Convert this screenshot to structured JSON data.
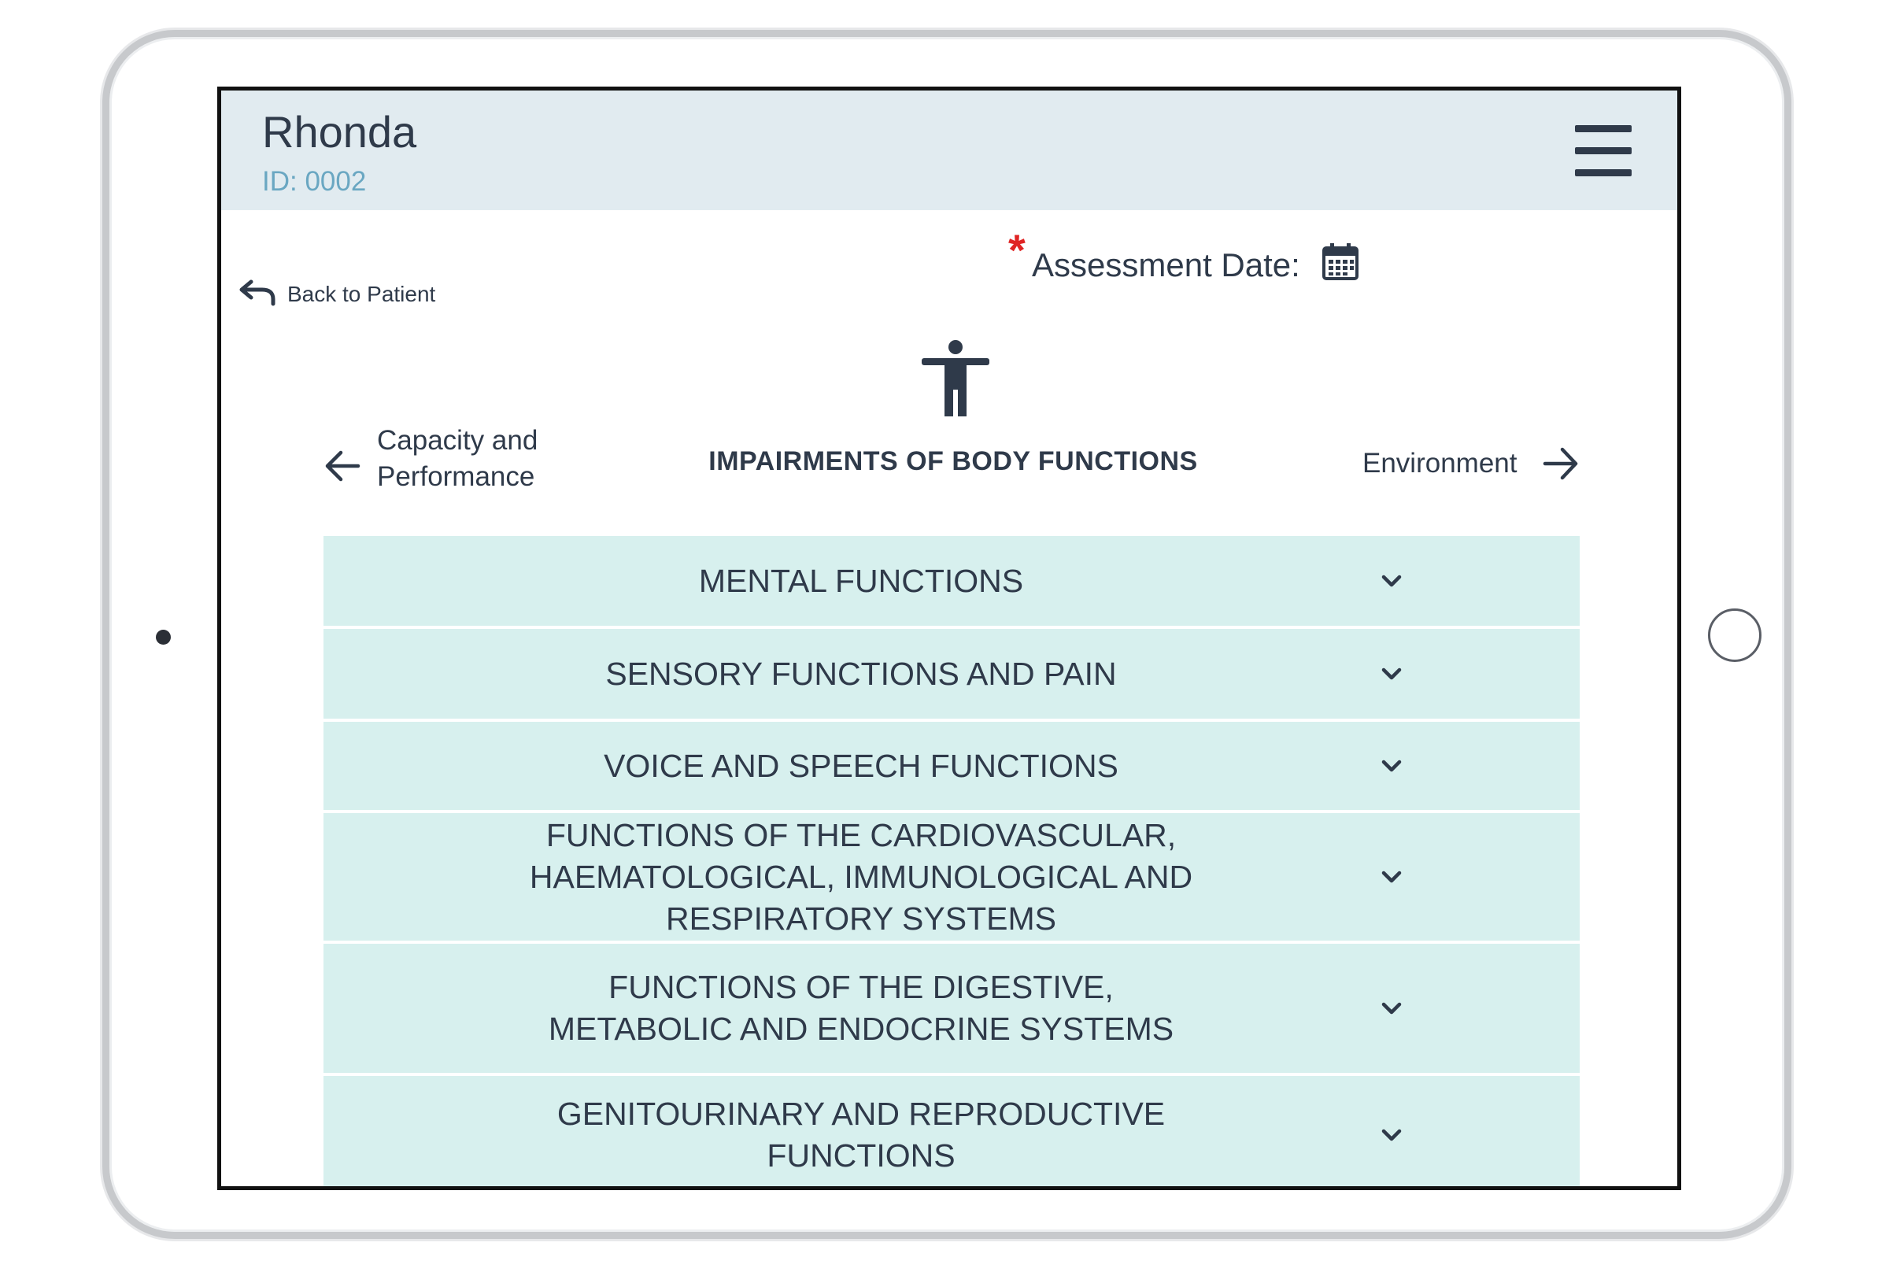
{
  "patient": {
    "name": "Rhonda",
    "id": "ID: 0002"
  },
  "header": {
    "menu_icon": "hamburger-menu-icon"
  },
  "assessment": {
    "required_mark": "*",
    "date_label": "Assessment Date:",
    "calendar_icon": "calendar-icon"
  },
  "back": {
    "label": "Back to Patient",
    "icon": "undo-arrow-icon"
  },
  "section": {
    "icon": "accessibility-person-icon",
    "title": "IMPAIRMENTS OF BODY FUNCTIONS",
    "prev": {
      "line1": "Capacity and",
      "line2": "Performance",
      "icon": "arrow-left-icon"
    },
    "next": {
      "label": "Environment",
      "icon": "arrow-right-icon"
    }
  },
  "categories": [
    {
      "lines": [
        "MENTAL FUNCTIONS"
      ]
    },
    {
      "lines": [
        "SENSORY FUNCTIONS AND PAIN"
      ]
    },
    {
      "lines": [
        "VOICE AND SPEECH FUNCTIONS"
      ]
    },
    {
      "lines": [
        "FUNCTIONS OF THE CARDIOVASCULAR,",
        "HAEMATOLOGICAL, IMMUNOLOGICAL AND",
        "RESPIRATORY SYSTEMS"
      ]
    },
    {
      "lines": [
        "FUNCTIONS OF THE DIGESTIVE,",
        "METABOLIC AND ENDOCRINE SYSTEMS"
      ]
    },
    {
      "lines": [
        "GENITOURINARY AND REPRODUCTIVE",
        "FUNCTIONS"
      ]
    }
  ],
  "colors": {
    "accent_row": "#d7f0ee",
    "header_bg": "#e1ebf0",
    "id_text": "#6aa7c2",
    "required": "#e02424"
  }
}
